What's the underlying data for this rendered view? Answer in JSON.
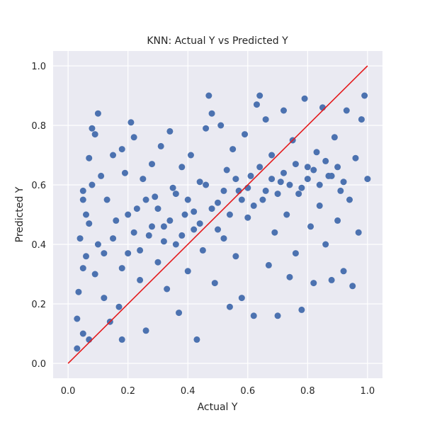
{
  "chart_data": {
    "type": "scatter",
    "title": "KNN: Actual Y vs Predicted Y",
    "xlabel": "Actual Y",
    "ylabel": "Predicted Y",
    "xlim": [
      -0.05,
      1.05
    ],
    "ylim": [
      -0.05,
      1.05
    ],
    "xticks": [
      0.0,
      0.2,
      0.4,
      0.6,
      0.8,
      1.0
    ],
    "yticks": [
      0.0,
      0.2,
      0.4,
      0.6,
      0.8,
      1.0
    ],
    "xtick_labels": [
      "0.0",
      "0.2",
      "0.4",
      "0.6",
      "0.8",
      "1.0"
    ],
    "ytick_labels": [
      "0.0",
      "0.2",
      "0.4",
      "0.6",
      "0.8",
      "1.0"
    ],
    "grid": true,
    "point_color": "#4c72b0",
    "background_color": "#eaeaf2",
    "reference_line": {
      "x": [
        0.0,
        1.0
      ],
      "y": [
        0.0,
        1.0
      ],
      "color": "#e41a1c"
    },
    "points": [
      [
        0.03,
        0.05
      ],
      [
        0.03,
        0.15
      ],
      [
        0.035,
        0.24
      ],
      [
        0.05,
        0.1
      ],
      [
        0.07,
        0.08
      ],
      [
        0.04,
        0.42
      ],
      [
        0.05,
        0.55
      ],
      [
        0.05,
        0.58
      ],
      [
        0.06,
        0.5
      ],
      [
        0.07,
        0.69
      ],
      [
        0.08,
        0.79
      ],
      [
        0.09,
        0.77
      ],
      [
        0.1,
        0.84
      ],
      [
        0.05,
        0.32
      ],
      [
        0.06,
        0.36
      ],
      [
        0.07,
        0.47
      ],
      [
        0.08,
        0.6
      ],
      [
        0.09,
        0.3
      ],
      [
        0.1,
        0.4
      ],
      [
        0.11,
        0.63
      ],
      [
        0.12,
        0.22
      ],
      [
        0.13,
        0.55
      ],
      [
        0.14,
        0.14
      ],
      [
        0.15,
        0.7
      ],
      [
        0.16,
        0.48
      ],
      [
        0.17,
        0.19
      ],
      [
        0.18,
        0.08
      ],
      [
        0.18,
        0.72
      ],
      [
        0.19,
        0.64
      ],
      [
        0.2,
        0.37
      ],
      [
        0.21,
        0.81
      ],
      [
        0.22,
        0.76
      ],
      [
        0.23,
        0.52
      ],
      [
        0.24,
        0.28
      ],
      [
        0.25,
        0.62
      ],
      [
        0.26,
        0.11
      ],
      [
        0.27,
        0.43
      ],
      [
        0.28,
        0.67
      ],
      [
        0.29,
        0.56
      ],
      [
        0.3,
        0.34
      ],
      [
        0.31,
        0.73
      ],
      [
        0.32,
        0.46
      ],
      [
        0.33,
        0.25
      ],
      [
        0.34,
        0.78
      ],
      [
        0.35,
        0.59
      ],
      [
        0.36,
        0.4
      ],
      [
        0.37,
        0.17
      ],
      [
        0.38,
        0.66
      ],
      [
        0.39,
        0.5
      ],
      [
        0.4,
        0.31
      ],
      [
        0.41,
        0.7
      ],
      [
        0.42,
        0.45
      ],
      [
        0.43,
        0.08
      ],
      [
        0.44,
        0.61
      ],
      [
        0.45,
        0.38
      ],
      [
        0.46,
        0.79
      ],
      [
        0.47,
        0.9
      ],
      [
        0.48,
        0.84
      ],
      [
        0.49,
        0.27
      ],
      [
        0.5,
        0.54
      ],
      [
        0.51,
        0.8
      ],
      [
        0.52,
        0.42
      ],
      [
        0.53,
        0.65
      ],
      [
        0.54,
        0.19
      ],
      [
        0.55,
        0.72
      ],
      [
        0.56,
        0.36
      ],
      [
        0.57,
        0.58
      ],
      [
        0.58,
        0.22
      ],
      [
        0.59,
        0.77
      ],
      [
        0.6,
        0.49
      ],
      [
        0.61,
        0.63
      ],
      [
        0.62,
        0.16
      ],
      [
        0.63,
        0.87
      ],
      [
        0.64,
        0.9
      ],
      [
        0.65,
        0.55
      ],
      [
        0.66,
        0.82
      ],
      [
        0.67,
        0.33
      ],
      [
        0.68,
        0.7
      ],
      [
        0.69,
        0.44
      ],
      [
        0.7,
        0.16
      ],
      [
        0.71,
        0.61
      ],
      [
        0.72,
        0.85
      ],
      [
        0.73,
        0.5
      ],
      [
        0.74,
        0.29
      ],
      [
        0.75,
        0.75
      ],
      [
        0.76,
        0.37
      ],
      [
        0.77,
        0.57
      ],
      [
        0.78,
        0.18
      ],
      [
        0.79,
        0.89
      ],
      [
        0.8,
        0.66
      ],
      [
        0.81,
        0.46
      ],
      [
        0.82,
        0.27
      ],
      [
        0.83,
        0.71
      ],
      [
        0.84,
        0.53
      ],
      [
        0.85,
        0.86
      ],
      [
        0.86,
        0.4
      ],
      [
        0.87,
        0.63
      ],
      [
        0.88,
        0.28
      ],
      [
        0.89,
        0.76
      ],
      [
        0.9,
        0.48
      ],
      [
        0.91,
        0.58
      ],
      [
        0.92,
        0.31
      ],
      [
        0.93,
        0.85
      ],
      [
        0.94,
        0.55
      ],
      [
        0.95,
        0.26
      ],
      [
        0.96,
        0.69
      ],
      [
        0.97,
        0.44
      ],
      [
        0.98,
        0.82
      ],
      [
        0.99,
        0.9
      ],
      [
        1.0,
        0.62
      ],
      [
        0.12,
        0.37
      ],
      [
        0.15,
        0.42
      ],
      [
        0.18,
        0.32
      ],
      [
        0.2,
        0.5
      ],
      [
        0.22,
        0.44
      ],
      [
        0.24,
        0.38
      ],
      [
        0.26,
        0.55
      ],
      [
        0.28,
        0.46
      ],
      [
        0.3,
        0.52
      ],
      [
        0.32,
        0.41
      ],
      [
        0.34,
        0.48
      ],
      [
        0.36,
        0.57
      ],
      [
        0.38,
        0.43
      ],
      [
        0.4,
        0.55
      ],
      [
        0.42,
        0.51
      ],
      [
        0.44,
        0.47
      ],
      [
        0.46,
        0.6
      ],
      [
        0.48,
        0.52
      ],
      [
        0.5,
        0.45
      ],
      [
        0.52,
        0.58
      ],
      [
        0.54,
        0.5
      ],
      [
        0.56,
        0.62
      ],
      [
        0.58,
        0.55
      ],
      [
        0.6,
        0.59
      ],
      [
        0.62,
        0.53
      ],
      [
        0.64,
        0.66
      ],
      [
        0.66,
        0.58
      ],
      [
        0.68,
        0.62
      ],
      [
        0.7,
        0.57
      ],
      [
        0.72,
        0.64
      ],
      [
        0.74,
        0.6
      ],
      [
        0.76,
        0.67
      ],
      [
        0.78,
        0.59
      ],
      [
        0.8,
        0.62
      ],
      [
        0.82,
        0.65
      ],
      [
        0.84,
        0.6
      ],
      [
        0.86,
        0.68
      ],
      [
        0.88,
        0.63
      ],
      [
        0.9,
        0.66
      ],
      [
        0.92,
        0.61
      ]
    ]
  }
}
